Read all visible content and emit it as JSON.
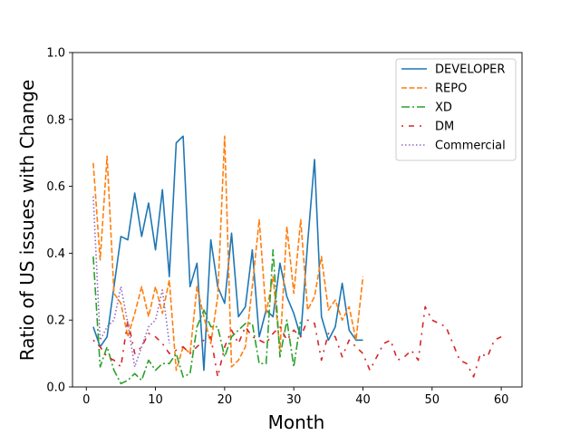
{
  "chart_data": {
    "type": "line",
    "title": "",
    "xlabel": "Month",
    "ylabel": "Ratio of US issues with Change",
    "xlim": [
      -2,
      63
    ],
    "ylim": [
      0,
      1.0
    ],
    "xticks": [
      "0",
      "10",
      "20",
      "30",
      "40",
      "50",
      "60"
    ],
    "yticks": [
      "0.0",
      "0.2",
      "0.4",
      "0.6",
      "0.8",
      "1.0"
    ],
    "grid": false,
    "legend": "top-right",
    "series": [
      {
        "name": "DEVELOPER",
        "color": "#1f77b4",
        "style": "solid",
        "x": [
          1,
          2,
          3,
          4,
          5,
          6,
          7,
          8,
          9,
          10,
          11,
          12,
          13,
          14,
          15,
          16,
          17,
          18,
          19,
          20,
          21,
          22,
          23,
          24,
          25,
          26,
          27,
          28,
          29,
          30,
          31,
          32,
          33,
          34,
          35,
          36,
          37,
          38,
          39,
          40
        ],
        "y": [
          0.18,
          0.12,
          0.15,
          0.3,
          0.45,
          0.44,
          0.58,
          0.45,
          0.55,
          0.41,
          0.59,
          0.33,
          0.73,
          0.75,
          0.3,
          0.37,
          0.05,
          0.44,
          0.3,
          0.25,
          0.46,
          0.21,
          0.24,
          0.41,
          0.15,
          0.23,
          0.21,
          0.37,
          0.27,
          0.22,
          0.15,
          0.43,
          0.68,
          0.21,
          0.14,
          0.18,
          0.31,
          0.17,
          0.14,
          0.14
        ]
      },
      {
        "name": "REPO",
        "color": "#ff7f0e",
        "style": "dashed",
        "x": [
          1,
          2,
          3,
          4,
          5,
          6,
          7,
          8,
          9,
          10,
          11,
          12,
          13,
          14,
          15,
          16,
          17,
          18,
          19,
          20,
          21,
          22,
          23,
          24,
          25,
          26,
          27,
          28,
          29,
          30,
          31,
          32,
          33,
          34,
          35,
          36,
          37,
          38,
          39,
          40
        ],
        "y": [
          0.67,
          0.38,
          0.69,
          0.28,
          0.25,
          0.15,
          0.22,
          0.3,
          0.21,
          0.3,
          0.22,
          0.32,
          0.05,
          0.12,
          0.1,
          0.3,
          0.21,
          0.13,
          0.27,
          0.75,
          0.06,
          0.08,
          0.12,
          0.3,
          0.5,
          0.22,
          0.33,
          0.11,
          0.48,
          0.28,
          0.5,
          0.23,
          0.27,
          0.39,
          0.23,
          0.26,
          0.2,
          0.24,
          0.14,
          0.33
        ]
      },
      {
        "name": "XD",
        "color": "#2ca02c",
        "style": "dashdot",
        "x": [
          1,
          2,
          3,
          4,
          5,
          6,
          7,
          8,
          9,
          10,
          11,
          12,
          13,
          14,
          15,
          16,
          17,
          18,
          19,
          20,
          21,
          22,
          23,
          24,
          25,
          26,
          27,
          28,
          29,
          30,
          31
        ],
        "y": [
          0.39,
          0.06,
          0.12,
          0.05,
          0.01,
          0.02,
          0.04,
          0.02,
          0.08,
          0.05,
          0.07,
          0.07,
          0.1,
          0.03,
          0.04,
          0.18,
          0.23,
          0.18,
          0.18,
          0.09,
          0.15,
          0.17,
          0.19,
          0.19,
          0.07,
          0.07,
          0.41,
          0.09,
          0.2,
          0.06,
          0.2
        ]
      },
      {
        "name": "DM",
        "color": "#d62728",
        "style": "dashdot2",
        "x": [
          1,
          2,
          3,
          4,
          5,
          6,
          7,
          8,
          9,
          10,
          11,
          12,
          13,
          14,
          15,
          16,
          17,
          18,
          19,
          20,
          21,
          22,
          23,
          24,
          25,
          26,
          27,
          28,
          29,
          30,
          31,
          32,
          33,
          34,
          35,
          36,
          37,
          38,
          39,
          40,
          41,
          42,
          43,
          44,
          45,
          46,
          47,
          48,
          49,
          50,
          51,
          52,
          53,
          54,
          55,
          56,
          57,
          58,
          59,
          60
        ],
        "y": [
          0.14,
          0.12,
          0.09,
          0.08,
          0.06,
          0.2,
          0.1,
          0.12,
          0.16,
          0.15,
          0.13,
          0.1,
          0.11,
          0.12,
          0.1,
          0.12,
          0.14,
          0.15,
          0.03,
          0.12,
          0.17,
          0.13,
          0.18,
          0.15,
          0.14,
          0.13,
          0.16,
          0.18,
          0.14,
          0.17,
          0.15,
          0.2,
          0.19,
          0.08,
          0.16,
          0.15,
          0.09,
          0.14,
          0.12,
          0.1,
          0.05,
          0.09,
          0.13,
          0.14,
          0.08,
          0.09,
          0.11,
          0.08,
          0.24,
          0.2,
          0.19,
          0.18,
          0.13,
          0.08,
          0.07,
          0.03,
          0.1,
          0.09,
          0.14,
          0.15
        ]
      },
      {
        "name": "Commercial",
        "color": "#9467bd",
        "style": "dotted",
        "x": [
          1,
          2,
          3,
          4,
          5,
          6,
          7,
          8,
          9,
          10,
          11,
          12
        ],
        "y": [
          0.57,
          0.14,
          0.18,
          0.2,
          0.3,
          0.19,
          0.06,
          0.12,
          0.18,
          0.2,
          0.29,
          0.13
        ]
      }
    ]
  }
}
